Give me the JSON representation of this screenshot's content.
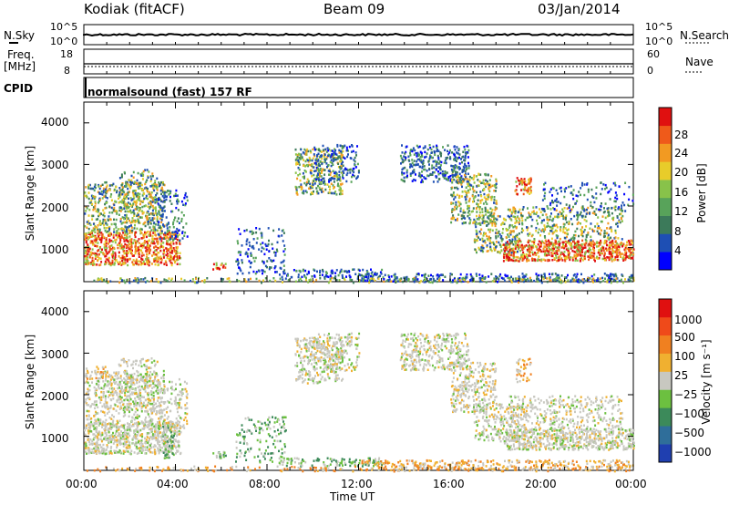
{
  "header": {
    "station": "Kodiak  (fitACF)",
    "beam": "Beam 09",
    "date": "03/Jan/2014"
  },
  "top_panels": {
    "nsky_label": "N.Sky",
    "nsearch_label": "N.Search",
    "noise_ticks_left": [
      "10^5",
      "10^0"
    ],
    "noise_ticks_right": [
      "10^5",
      "10^0"
    ],
    "freq_label": "Freq.",
    "freq_unit": "[MHz]",
    "freq_ticks": [
      "18",
      "8"
    ],
    "nave_label": "Nave",
    "nave_ticks": [
      "60",
      "0"
    ],
    "cpid_label": "CPID",
    "cpid_value": "normalsound (fast) 157 RF"
  },
  "chart_data": [
    {
      "type": "heatmap",
      "panel": "power",
      "ylabel": "Slant Range [km]",
      "ylim": [
        180,
        4500
      ],
      "y_ticks": [
        "4000",
        "3000",
        "2000",
        "1000"
      ],
      "colorbar_label": "Power [dB]",
      "colorbar_ticks": [
        "28",
        "24",
        "20",
        "16",
        "12",
        "8",
        "4"
      ],
      "colorbar_colors": [
        "#0000ff",
        "#1e4fb4",
        "#3c7a5a",
        "#58a35a",
        "#88c24a",
        "#e8cc2a",
        "#f29a22",
        "#ef5a1a",
        "#e01010"
      ]
    },
    {
      "type": "heatmap",
      "panel": "velocity",
      "ylabel": "Slant Range [km]",
      "ylim": [
        180,
        4500
      ],
      "y_ticks": [
        "4000",
        "3000",
        "2000",
        "1000"
      ],
      "colorbar_label": "Velocity  [m s⁻¹]",
      "colorbar_ticks": [
        "1000",
        "500",
        "100",
        "25",
        "−25",
        "−100",
        "−500",
        "−1000"
      ],
      "colorbar_colors": [
        "#1f3fb0",
        "#2f6e9a",
        "#3c8a5a",
        "#6cc040",
        "#c8c8c0",
        "#f0b030",
        "#f08020",
        "#ef4a1a",
        "#e01010"
      ],
      "xlabel": "Time UT",
      "x_ticks": [
        "00:00",
        "04:00",
        "08:00",
        "12:00",
        "16:00",
        "20:00",
        "00:00"
      ]
    }
  ]
}
